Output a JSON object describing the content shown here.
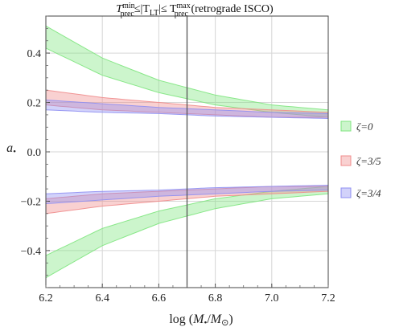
{
  "chart_data": {
    "type": "area",
    "title": {
      "t1": "T",
      "t1sup": "min",
      "t1sub": "prec",
      "mid": "≤|T",
      "t2sub": "LT",
      "mid2": "|≤ T",
      "t3sup": "max",
      "t3sub": "prec",
      "tail": " (retrograde ISCO)"
    },
    "xlabel": {
      "pre": "log (",
      "m1": "M",
      "bullet": "•",
      "slash": "/",
      "m2": "M",
      "sun": "⊙",
      "post": ")"
    },
    "ylabel": {
      "main": "a",
      "sub": "•"
    },
    "xlim": [
      6.2,
      7.2
    ],
    "ylim": [
      -0.55,
      0.55
    ],
    "xticks": [
      "6.2",
      "6.4",
      "6.6",
      "6.8",
      "7.0",
      "7.2"
    ],
    "yticks": [
      "−0.4",
      "−0.2",
      "0.0",
      "0.2",
      "0.4"
    ],
    "ytick_values": [
      -0.4,
      -0.2,
      0.0,
      0.2,
      0.4
    ],
    "xtick_values": [
      6.2,
      6.4,
      6.6,
      6.8,
      7.0,
      7.2
    ],
    "grid": true,
    "vertical_line_x": 6.7,
    "legend_position": "right",
    "x": [
      6.2,
      6.4,
      6.6,
      6.8,
      7.0,
      7.2
    ],
    "series": [
      {
        "name": "ζ=0",
        "color": "#7FE57F",
        "upper": [
          0.51,
          0.38,
          0.29,
          0.23,
          0.19,
          0.17
        ],
        "lower": [
          0.42,
          0.31,
          0.24,
          0.19,
          0.16,
          0.14
        ]
      },
      {
        "name": "ζ=3/5",
        "color": "#F08C8C",
        "upper": [
          0.25,
          0.22,
          0.2,
          0.18,
          0.17,
          0.16
        ],
        "lower": [
          0.19,
          0.17,
          0.16,
          0.15,
          0.14,
          0.14
        ]
      },
      {
        "name": "ζ=3/4",
        "color": "#8F8FF2",
        "upper": [
          0.21,
          0.195,
          0.18,
          0.17,
          0.16,
          0.155
        ],
        "lower": [
          0.17,
          0.16,
          0.155,
          0.145,
          0.14,
          0.135
        ]
      }
    ],
    "legend": [
      "ζ=0",
      "ζ=3/5",
      "ζ=3/4"
    ]
  }
}
